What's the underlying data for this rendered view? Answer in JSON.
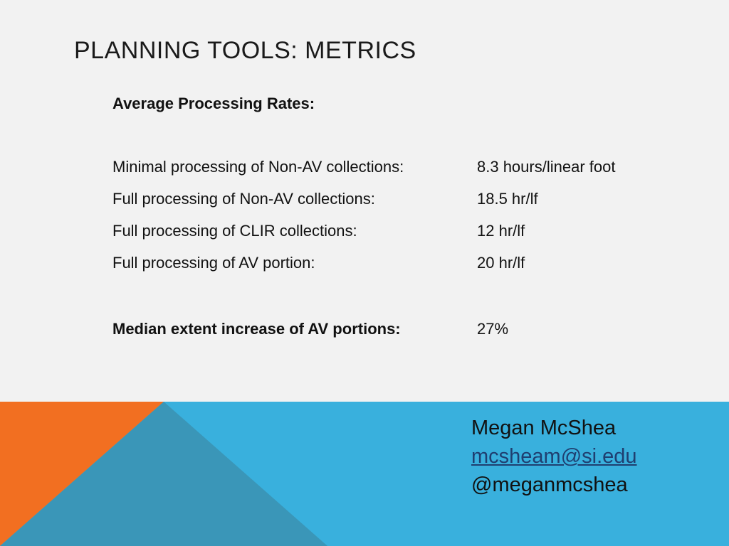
{
  "slide": {
    "title": "PLANNING TOOLS: METRICS",
    "subhead": "Average Processing Rates:",
    "rates": [
      {
        "label": "Minimal processing of Non-AV collections:",
        "value": "8.3 hours/linear foot"
      },
      {
        "label": "Full processing of Non-AV collections:",
        "value": "18.5 hr/lf"
      },
      {
        "label": "Full processing of CLIR collections:",
        "value": "12 hr/lf"
      },
      {
        "label": "Full processing of AV portion:",
        "value": "20 hr/lf"
      }
    ],
    "median": {
      "label": "Median extent increase of AV portions:",
      "value": "27%"
    }
  },
  "contact": {
    "name": "Megan McShea",
    "email": "mcsheam@si.edu",
    "handle": "@meganmcshea"
  },
  "colors": {
    "background": "#f2f2f2",
    "orange": "#f26f21",
    "blue": "#39b0dd",
    "steel_blue": "#3a96b8"
  }
}
